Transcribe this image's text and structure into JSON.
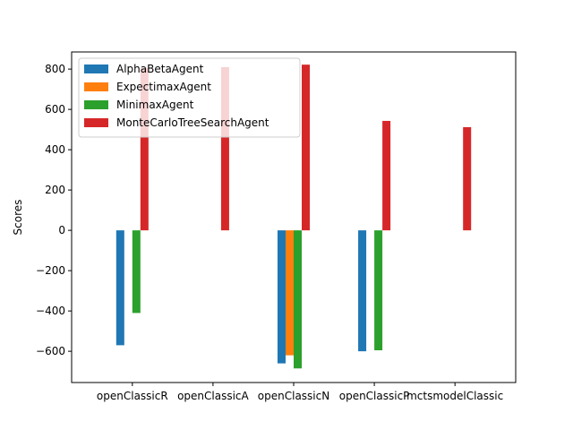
{
  "chart_data": {
    "type": "bar",
    "title": "",
    "xlabel": "",
    "ylabel": "Scores",
    "categories": [
      "openClassicR",
      "openClassicA",
      "openClassicN",
      "openClassicP",
      "mctsmodelClassic"
    ],
    "series": [
      {
        "name": "AlphaBetaAgent",
        "color": "#1f77b4",
        "values": [
          -570,
          0,
          -660,
          -600,
          0
        ]
      },
      {
        "name": "ExpectimaxAgent",
        "color": "#ff7f0e",
        "values": [
          0,
          0,
          -620,
          0,
          0
        ]
      },
      {
        "name": "MinimaxAgent",
        "color": "#2ca02c",
        "values": [
          -410,
          0,
          -685,
          -595,
          0
        ]
      },
      {
        "name": "MonteCarloTreeSearchAgent",
        "color": "#d62728",
        "values": [
          805,
          810,
          822,
          543,
          512
        ]
      }
    ],
    "ylim": [
      -755,
      885
    ],
    "yticks": [
      -600,
      -400,
      -200,
      0,
      200,
      400,
      600,
      800
    ],
    "grid": false,
    "legend": "top-left"
  }
}
